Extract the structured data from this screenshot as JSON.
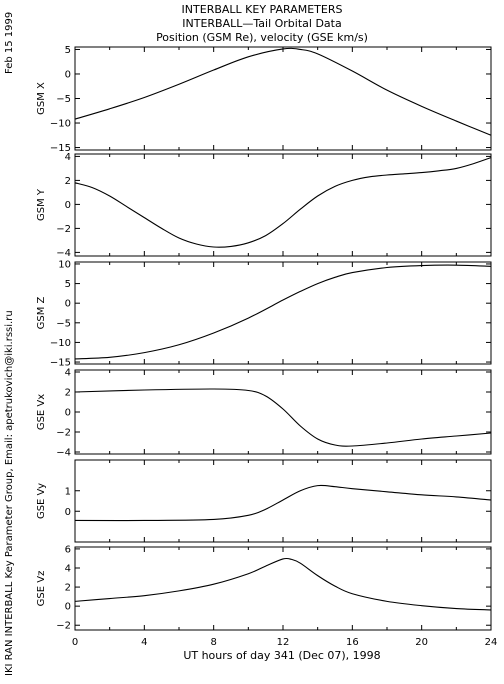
{
  "header": {
    "date": "Feb 15 1999",
    "title_lines": [
      "INTERBALL KEY PARAMETERS",
      "INTERBALL—Tail Orbital Data",
      "Position (GSM Re), velocity (GSE km/s)"
    ]
  },
  "credit": "IKI RAN INTERBALL Key Parameter Group, Email: apetrukovich@iki.rssi.ru",
  "chart_data": {
    "type": "line",
    "xlabel": "UT hours of day 341 (Dec 07), 1998",
    "xlim": [
      0,
      24
    ],
    "xticks": [
      0,
      4,
      8,
      12,
      16,
      20,
      24
    ],
    "xtick_labels": [
      "0",
      "4",
      "8",
      "12",
      "16",
      "20",
      "24"
    ],
    "grid": false,
    "panels": [
      {
        "ylabel": "GSM X",
        "ylim": [
          -15.5,
          5.5
        ],
        "yticks": [
          5,
          0,
          -5,
          -10,
          -15
        ],
        "ytick_labels": [
          "5",
          "0",
          "−5",
          "−10",
          "−15"
        ],
        "x": [
          0,
          2,
          4,
          6,
          8,
          10,
          12,
          13,
          14,
          16,
          18,
          20,
          22,
          24
        ],
        "values": [
          -9.2,
          -7.1,
          -4.8,
          -2.1,
          0.8,
          3.5,
          5.1,
          5.0,
          4.1,
          0.6,
          -3.3,
          -6.6,
          -9.6,
          -12.5
        ]
      },
      {
        "ylabel": "GSM Y",
        "ylim": [
          -4.3,
          4.2
        ],
        "yticks": [
          4,
          2,
          0,
          -2,
          -4
        ],
        "ytick_labels": [
          "4",
          "2",
          "0",
          "−2",
          "−4"
        ],
        "x": [
          0,
          1,
          2,
          3,
          4,
          5,
          6,
          7,
          8,
          9,
          10,
          11,
          12,
          13,
          14,
          15,
          16,
          17,
          18,
          19,
          20,
          21,
          22,
          23,
          24
        ],
        "values": [
          1.8,
          1.4,
          0.7,
          -0.2,
          -1.1,
          -2.0,
          -2.8,
          -3.3,
          -3.55,
          -3.5,
          -3.2,
          -2.6,
          -1.6,
          -0.4,
          0.7,
          1.5,
          2.0,
          2.3,
          2.45,
          2.55,
          2.65,
          2.8,
          3.0,
          3.4,
          3.9
        ]
      },
      {
        "ylabel": "GSM Z",
        "ylim": [
          -15.5,
          10.5
        ],
        "yticks": [
          10,
          5,
          0,
          -5,
          -10,
          -15
        ],
        "ytick_labels": [
          "10",
          "5",
          "0",
          "−5",
          "−10",
          "−15"
        ],
        "x": [
          0,
          2,
          4,
          6,
          8,
          10,
          12,
          13,
          14,
          15,
          16,
          18,
          20,
          22,
          24
        ],
        "values": [
          -14.2,
          -13.8,
          -12.6,
          -10.6,
          -7.6,
          -3.8,
          0.8,
          3.0,
          5.0,
          6.6,
          7.8,
          9.1,
          9.6,
          9.7,
          9.4
        ]
      },
      {
        "ylabel": "GSE Vx",
        "ylim": [
          -4.2,
          4.2
        ],
        "yticks": [
          4,
          2,
          0,
          -2,
          -4
        ],
        "ytick_labels": [
          "4",
          "2",
          "0",
          "−2",
          "−4"
        ],
        "x": [
          0,
          4,
          8,
          10,
          11,
          12,
          13,
          14,
          15,
          16,
          18,
          20,
          22,
          24
        ],
        "values": [
          2.0,
          2.2,
          2.3,
          2.15,
          1.6,
          0.3,
          -1.4,
          -2.7,
          -3.3,
          -3.4,
          -3.1,
          -2.7,
          -2.4,
          -2.1
        ]
      },
      {
        "ylabel": "GSE Vy",
        "ylim": [
          -1.5,
          2.5
        ],
        "yticks": [
          0,
          1
        ],
        "ytick_labels": [
          "0",
          "1"
        ],
        "x": [
          0,
          4,
          8,
          10,
          11,
          12,
          13,
          14,
          15,
          16,
          18,
          20,
          22,
          24
        ],
        "values": [
          -0.45,
          -0.45,
          -0.4,
          -0.2,
          0.1,
          0.55,
          1.0,
          1.25,
          1.2,
          1.1,
          0.95,
          0.8,
          0.7,
          0.55
        ]
      },
      {
        "ylabel": "GSE Vz",
        "ylim": [
          -2.5,
          6.2
        ],
        "yticks": [
          6,
          4,
          2,
          0,
          -2
        ],
        "ytick_labels": [
          "6",
          "4",
          "2",
          "0",
          "−2"
        ],
        "x": [
          0,
          2,
          4,
          6,
          8,
          10,
          11,
          12,
          12.5,
          13,
          14,
          15,
          16,
          18,
          20,
          22,
          24
        ],
        "values": [
          0.5,
          0.8,
          1.1,
          1.6,
          2.3,
          3.4,
          4.2,
          4.95,
          4.9,
          4.5,
          3.2,
          2.1,
          1.3,
          0.5,
          0.05,
          -0.25,
          -0.4
        ]
      }
    ]
  }
}
